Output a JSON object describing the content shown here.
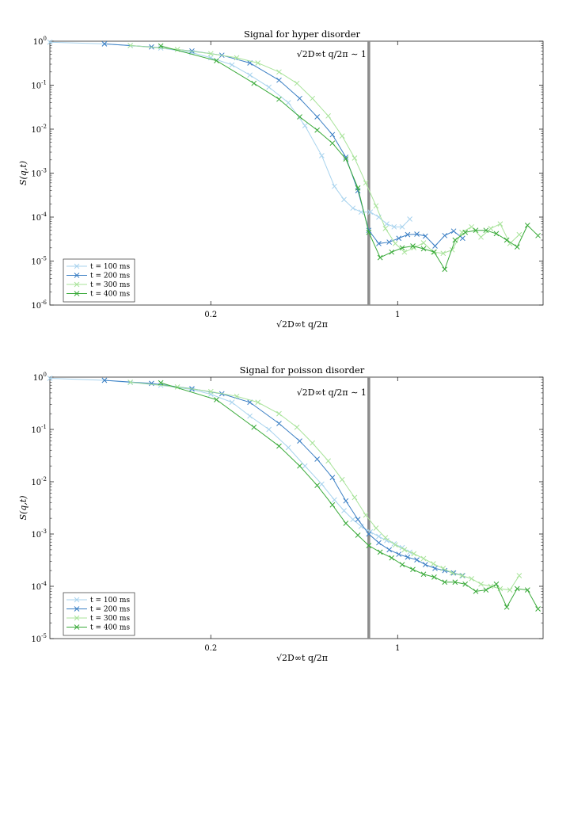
{
  "chart_data": [
    {
      "type": "line",
      "title": "Signal for hyper disorder",
      "xlabel": "√2D∞t q/2π",
      "ylabel": "S(q,t)",
      "xscale": "log",
      "yscale": "log",
      "xlim": [
        0.05,
        3.5
      ],
      "ylim": [
        1e-06,
        1
      ],
      "xticks": [
        {
          "value": 0.2,
          "label": "0.2"
        },
        {
          "value": 1,
          "label": "1"
        }
      ],
      "yticks": [
        {
          "value": 1,
          "base": "10",
          "exp": "0"
        },
        {
          "value": 0.1,
          "base": "10",
          "exp": "-1"
        },
        {
          "value": 0.01,
          "base": "10",
          "exp": "-2"
        },
        {
          "value": 0.001,
          "base": "10",
          "exp": "-3"
        },
        {
          "value": 0.0001,
          "base": "10",
          "exp": "-4"
        },
        {
          "value": 1e-05,
          "base": "10",
          "exp": "-5"
        },
        {
          "value": 1e-06,
          "base": "10",
          "exp": "-6"
        }
      ],
      "vline": {
        "x": 0.78,
        "label": "√2D∞t q/2π ∼ 1"
      },
      "legend_position": "bottom-left",
      "series": [
        {
          "name": "t = 100 ms",
          "color": "#a8d3ee",
          "x": [
            0.05,
            0.08,
            0.1,
            0.13,
            0.17,
            0.2,
            0.24,
            0.28,
            0.33,
            0.39,
            0.45,
            0.52,
            0.58,
            0.63,
            0.68,
            0.73,
            0.79,
            0.85,
            0.91,
            0.97,
            1.04,
            1.11
          ],
          "y": [
            0.95,
            0.87,
            0.79,
            0.7,
            0.55,
            0.42,
            0.29,
            0.17,
            0.09,
            0.04,
            0.012,
            0.0025,
            0.0005,
            0.00025,
            0.00016,
            0.00013,
            0.00013,
            0.0001,
            7e-05,
            6e-05,
            6e-05,
            9e-05
          ]
        },
        {
          "name": "t = 200 ms",
          "color": "#3b7fc4",
          "x": [
            0.08,
            0.12,
            0.17,
            0.22,
            0.28,
            0.36,
            0.43,
            0.5,
            0.57,
            0.64,
            0.71,
            0.78,
            0.85,
            0.93,
            1.01,
            1.09,
            1.18,
            1.27,
            1.38,
            1.5,
            1.62,
            1.75
          ],
          "y": [
            0.87,
            0.74,
            0.6,
            0.48,
            0.32,
            0.13,
            0.05,
            0.019,
            0.0075,
            0.0023,
            0.0004,
            5e-05,
            2.5e-05,
            2.7e-05,
            3.3e-05,
            4e-05,
            4.1e-05,
            3.7e-05,
            2.2e-05,
            3.8e-05,
            4.8e-05,
            3.3e-05
          ]
        },
        {
          "name": "t = 300 ms",
          "color": "#a8e39a",
          "x": [
            0.1,
            0.15,
            0.2,
            0.25,
            0.3,
            0.36,
            0.42,
            0.48,
            0.55,
            0.62,
            0.69,
            0.76,
            0.83,
            0.9,
            0.98,
            1.06,
            1.15,
            1.25,
            1.36,
            1.48,
            1.6,
            1.74,
            1.89,
            2.05,
            2.23,
            2.42,
            2.63,
            2.85
          ],
          "y": [
            0.8,
            0.65,
            0.52,
            0.42,
            0.32,
            0.2,
            0.11,
            0.05,
            0.02,
            0.007,
            0.0022,
            0.0006,
            0.00018,
            5.5e-05,
            2.5e-05,
            1.6e-05,
            2e-05,
            2.6e-05,
            1.6e-05,
            1.5e-05,
            1.8e-05,
            4.5e-05,
            6e-05,
            3.5e-05,
            5.5e-05,
            7e-05,
            2.5e-05,
            4e-05
          ]
        },
        {
          "name": "t = 400 ms",
          "color": "#3aaa3a",
          "x": [
            0.13,
            0.21,
            0.29,
            0.36,
            0.43,
            0.5,
            0.57,
            0.64,
            0.71,
            0.78,
            0.86,
            0.95,
            1.04,
            1.14,
            1.25,
            1.37,
            1.5,
            1.64,
            1.79,
            1.96,
            2.14,
            2.34,
            2.56,
            2.8,
            3.06,
            3.35
          ],
          "y": [
            0.78,
            0.36,
            0.11,
            0.048,
            0.019,
            0.0095,
            0.0048,
            0.0021,
            0.00046,
            4.5e-05,
            1.2e-05,
            1.6e-05,
            2e-05,
            2.2e-05,
            1.9e-05,
            1.6e-05,
            6.5e-06,
            3e-05,
            4.5e-05,
            5e-05,
            5e-05,
            4.2e-05,
            3e-05,
            2.1e-05,
            6.5e-05,
            3.8e-05
          ]
        }
      ]
    },
    {
      "type": "line",
      "title": "Signal for poisson disorder",
      "xlabel": "√2D∞t q/2π",
      "ylabel": "S(q,t)",
      "xscale": "log",
      "yscale": "log",
      "xlim": [
        0.05,
        3.5
      ],
      "ylim": [
        1e-05,
        1
      ],
      "xticks": [
        {
          "value": 0.2,
          "label": "0.2"
        },
        {
          "value": 1,
          "label": "1"
        }
      ],
      "yticks": [
        {
          "value": 1,
          "base": "10",
          "exp": "0"
        },
        {
          "value": 0.1,
          "base": "10",
          "exp": "-1"
        },
        {
          "value": 0.01,
          "base": "10",
          "exp": "-2"
        },
        {
          "value": 0.001,
          "base": "10",
          "exp": "-3"
        },
        {
          "value": 0.0001,
          "base": "10",
          "exp": "-4"
        },
        {
          "value": 1e-05,
          "base": "10",
          "exp": "-5"
        }
      ],
      "vline": {
        "x": 0.78,
        "label": "√2D∞t q/2π ∼ 1"
      },
      "legend_position": "bottom-left",
      "series": [
        {
          "name": "t = 100 ms",
          "color": "#a8d3ee",
          "x": [
            0.05,
            0.08,
            0.1,
            0.13,
            0.17,
            0.2,
            0.24,
            0.28,
            0.33,
            0.39,
            0.45,
            0.52,
            0.58,
            0.63,
            0.68,
            0.73,
            0.79,
            0.85,
            0.91,
            0.97,
            1.04,
            1.11
          ],
          "y": [
            0.95,
            0.87,
            0.79,
            0.7,
            0.58,
            0.47,
            0.33,
            0.18,
            0.1,
            0.045,
            0.02,
            0.009,
            0.0045,
            0.0028,
            0.0019,
            0.0014,
            0.0011,
            0.0009,
            0.00075,
            0.00065,
            0.00055,
            0.00045
          ]
        },
        {
          "name": "t = 200 ms",
          "color": "#3b7fc4",
          "x": [
            0.08,
            0.12,
            0.17,
            0.22,
            0.28,
            0.36,
            0.43,
            0.5,
            0.57,
            0.64,
            0.71,
            0.78,
            0.85,
            0.93,
            1.01,
            1.09,
            1.18,
            1.27,
            1.38,
            1.5,
            1.62,
            1.75
          ],
          "y": [
            0.87,
            0.76,
            0.6,
            0.48,
            0.33,
            0.13,
            0.06,
            0.027,
            0.012,
            0.0043,
            0.0019,
            0.001,
            0.00068,
            0.0005,
            0.00041,
            0.00036,
            0.00032,
            0.00026,
            0.00022,
            0.0002,
            0.00018,
            0.00016
          ]
        },
        {
          "name": "t = 300 ms",
          "color": "#a8e39a",
          "x": [
            0.1,
            0.15,
            0.2,
            0.25,
            0.3,
            0.36,
            0.42,
            0.48,
            0.55,
            0.62,
            0.69,
            0.76,
            0.83,
            0.9,
            0.98,
            1.06,
            1.15,
            1.25,
            1.36,
            1.48,
            1.6,
            1.74,
            1.89,
            2.05,
            2.23,
            2.42,
            2.63,
            2.85
          ],
          "y": [
            0.8,
            0.65,
            0.53,
            0.43,
            0.33,
            0.2,
            0.11,
            0.055,
            0.025,
            0.011,
            0.005,
            0.0023,
            0.0013,
            0.00085,
            0.00062,
            0.0005,
            0.00042,
            0.00034,
            0.00027,
            0.00022,
            0.00018,
            0.00016,
            0.00014,
            0.00011,
            0.0001,
            9e-05,
            8.5e-05,
            0.00016
          ]
        },
        {
          "name": "t = 400 ms",
          "color": "#3aaa3a",
          "x": [
            0.13,
            0.21,
            0.29,
            0.36,
            0.43,
            0.5,
            0.57,
            0.64,
            0.71,
            0.78,
            0.86,
            0.95,
            1.04,
            1.14,
            1.25,
            1.37,
            1.5,
            1.64,
            1.79,
            1.96,
            2.14,
            2.34,
            2.56,
            2.8,
            3.06,
            3.35
          ],
          "y": [
            0.78,
            0.37,
            0.11,
            0.048,
            0.02,
            0.0085,
            0.0036,
            0.0016,
            0.00095,
            0.0006,
            0.00045,
            0.00035,
            0.00026,
            0.00021,
            0.00017,
            0.00015,
            0.00012,
            0.00012,
            0.00011,
            8e-05,
            8.5e-05,
            0.00011,
            4e-05,
            9e-05,
            8.5e-05,
            3.7e-05
          ]
        }
      ]
    }
  ]
}
